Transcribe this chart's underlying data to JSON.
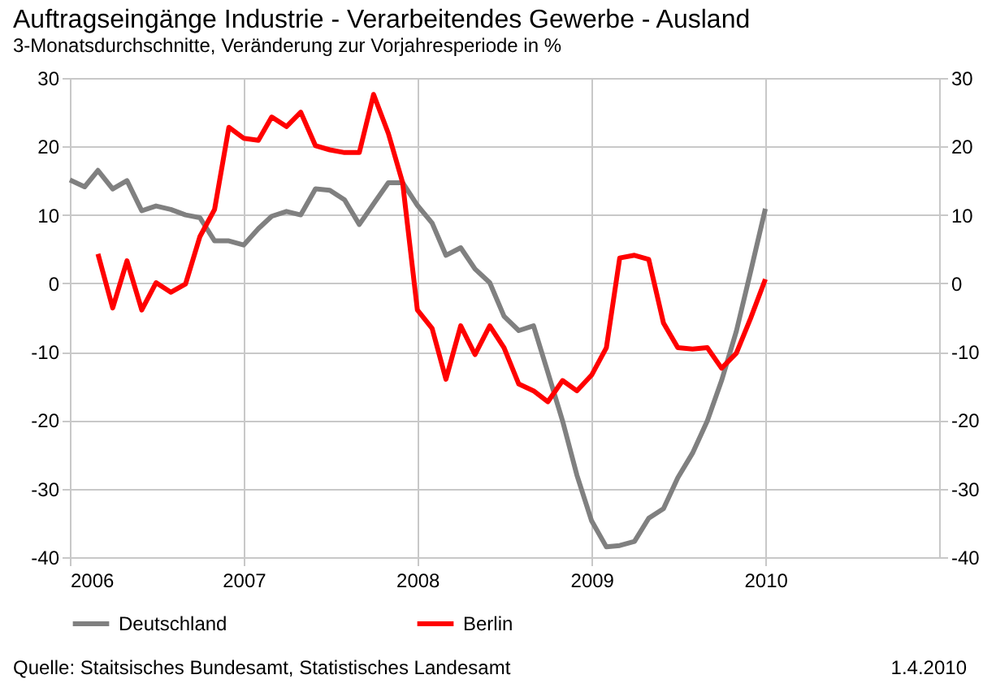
{
  "chart_data": {
    "type": "line",
    "title": "Auftragseingänge Industrie - Verarbeitendes Gewerbe - Ausland",
    "subtitle": "3-Monatsdurchschnitte, Veränderung zur Vorjahresperiode in %",
    "x": [
      "2006-01",
      "2006-02",
      "2006-03",
      "2006-04",
      "2006-05",
      "2006-06",
      "2006-07",
      "2006-08",
      "2006-09",
      "2006-10",
      "2006-11",
      "2006-12",
      "2007-01",
      "2007-02",
      "2007-03",
      "2007-04",
      "2007-05",
      "2007-06",
      "2007-07",
      "2007-08",
      "2007-09",
      "2007-10",
      "2007-11",
      "2007-12",
      "2008-01",
      "2008-02",
      "2008-03",
      "2008-04",
      "2008-05",
      "2008-06",
      "2008-07",
      "2008-08",
      "2008-09",
      "2008-10",
      "2008-11",
      "2008-12",
      "2009-01",
      "2009-02",
      "2009-03",
      "2009-04",
      "2009-05",
      "2009-06",
      "2009-07",
      "2009-08",
      "2009-09",
      "2009-10",
      "2009-11",
      "2009-12",
      "2010-01"
    ],
    "series": [
      {
        "name": "Deutschland",
        "color": "#808080",
        "values": [
          15.1,
          14.1,
          16.5,
          13.8,
          15.0,
          10.6,
          11.3,
          10.8,
          10.0,
          9.6,
          6.2,
          6.2,
          5.6,
          8.0,
          9.8,
          10.5,
          10.0,
          13.8,
          13.6,
          12.2,
          8.6,
          11.6,
          14.7,
          14.7,
          11.4,
          8.8,
          4.1,
          5.2,
          2.1,
          0.1,
          -4.8,
          -6.9,
          -6.2,
          -13.0,
          -20.1,
          -28.0,
          -34.7,
          -38.5,
          -38.3,
          -37.7,
          -34.3,
          -32.9,
          -28.4,
          -24.8,
          -20.1,
          -14.2,
          -7.0,
          1.7,
          10.9
        ]
      },
      {
        "name": "Berlin",
        "color": "#ff0000",
        "values": [
          null,
          null,
          4.3,
          -3.6,
          3.3,
          -3.9,
          0.1,
          -1.3,
          -0.1,
          6.8,
          10.8,
          22.8,
          21.2,
          20.9,
          24.3,
          22.9,
          25.0,
          20.1,
          19.5,
          19.1,
          19.1,
          27.6,
          21.9,
          14.7,
          -3.9,
          -6.6,
          -14.0,
          -6.2,
          -10.4,
          -6.2,
          -9.4,
          -14.7,
          -15.7,
          -17.3,
          -14.2,
          -15.7,
          -13.4,
          -9.4,
          3.7,
          4.1,
          3.5,
          -5.8,
          -9.4,
          -9.6,
          -9.4,
          -12.4,
          -10.2,
          -5.1,
          0.6
        ]
      }
    ],
    "xlim": [
      "2006-01",
      "2011-01"
    ],
    "xticks": [
      "2006",
      "2007",
      "2008",
      "2009",
      "2010"
    ],
    "ylim": [
      -40,
      30
    ],
    "yticks": [
      -40,
      -30,
      -20,
      -10,
      0,
      10,
      20,
      30
    ],
    "y2lim": [
      -40,
      30
    ],
    "y2ticks": [
      -40,
      -30,
      -20,
      -10,
      0,
      10,
      20,
      30
    ],
    "grid": true,
    "legend": "bottom",
    "line_style": "solid",
    "marker": "none",
    "annotations": [
      "Quelle: Staitsisches Bundesamt, Statistisches Landesamt",
      "1.4.2010"
    ]
  }
}
